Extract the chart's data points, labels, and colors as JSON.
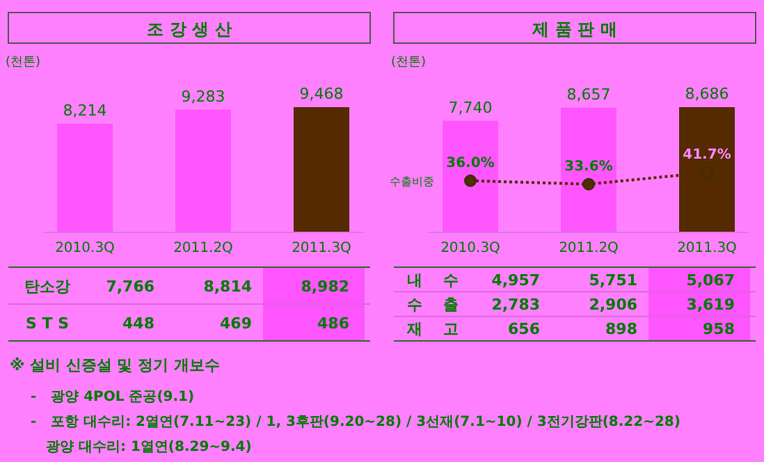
{
  "chart_data": [
    {
      "type": "bar",
      "title": "조 강 생 산",
      "ylabel": "(천톤)",
      "categories": [
        "2010.3Q",
        "2011.2Q",
        "2011.3Q"
      ],
      "values": [
        8214,
        9283,
        9468
      ],
      "colors": [
        "#ff55ff",
        "#ff55ff",
        "#552a00"
      ],
      "value_labels": [
        "8,214",
        "9,283",
        "9,468"
      ],
      "annotations": [
        "탄소강",
        "7,766",
        "8,814",
        "8,982",
        "S T S",
        "448",
        "469",
        "486"
      ]
    },
    {
      "type": "bar",
      "title": "제 품 판 매",
      "ylabel": "(천톤)",
      "categories": [
        "2010.3Q",
        "2011.2Q",
        "2011.3Q"
      ],
      "series": [
        {
          "colors": [
            "#ff55ff",
            "#ff55ff",
            "#552a00"
          ],
          "values": [
            7740,
            8657,
            8686
          ],
          "value_labels": [
            "7,740",
            "8,657",
            "8,686"
          ]
        },
        {
          "type": "line",
          "name": "수출비중",
          "axis": "y2",
          "color": "#552a00",
          "values": [
            36.0,
            33.6,
            41.7
          ],
          "value_labels": [
            "36.0%",
            "33.6%",
            "41.7%"
          ]
        }
      ],
      "marker": "circle",
      "line_style": "dotted",
      "annotations": [
        "내    수",
        "4,957",
        "5,751",
        "5,067",
        "수    출",
        "2,783",
        "2,906",
        "3,619",
        "재    고",
        "656",
        "898",
        "958"
      ]
    },
    {
      "type": "other",
      "title": "※ 설비 신증설 및 정기 개보수",
      "annotations": [
        "-   광양 4POL 준공(9.1)",
        "-   포항 대수리: 2열연(7.11~23) / 1, 3후판(9.20~28) / 3선재(7.1~10) / 3전기강판(8.22~28)",
        "광양 대수리: 1열연(8.29~9.4)"
      ]
    }
  ]
}
